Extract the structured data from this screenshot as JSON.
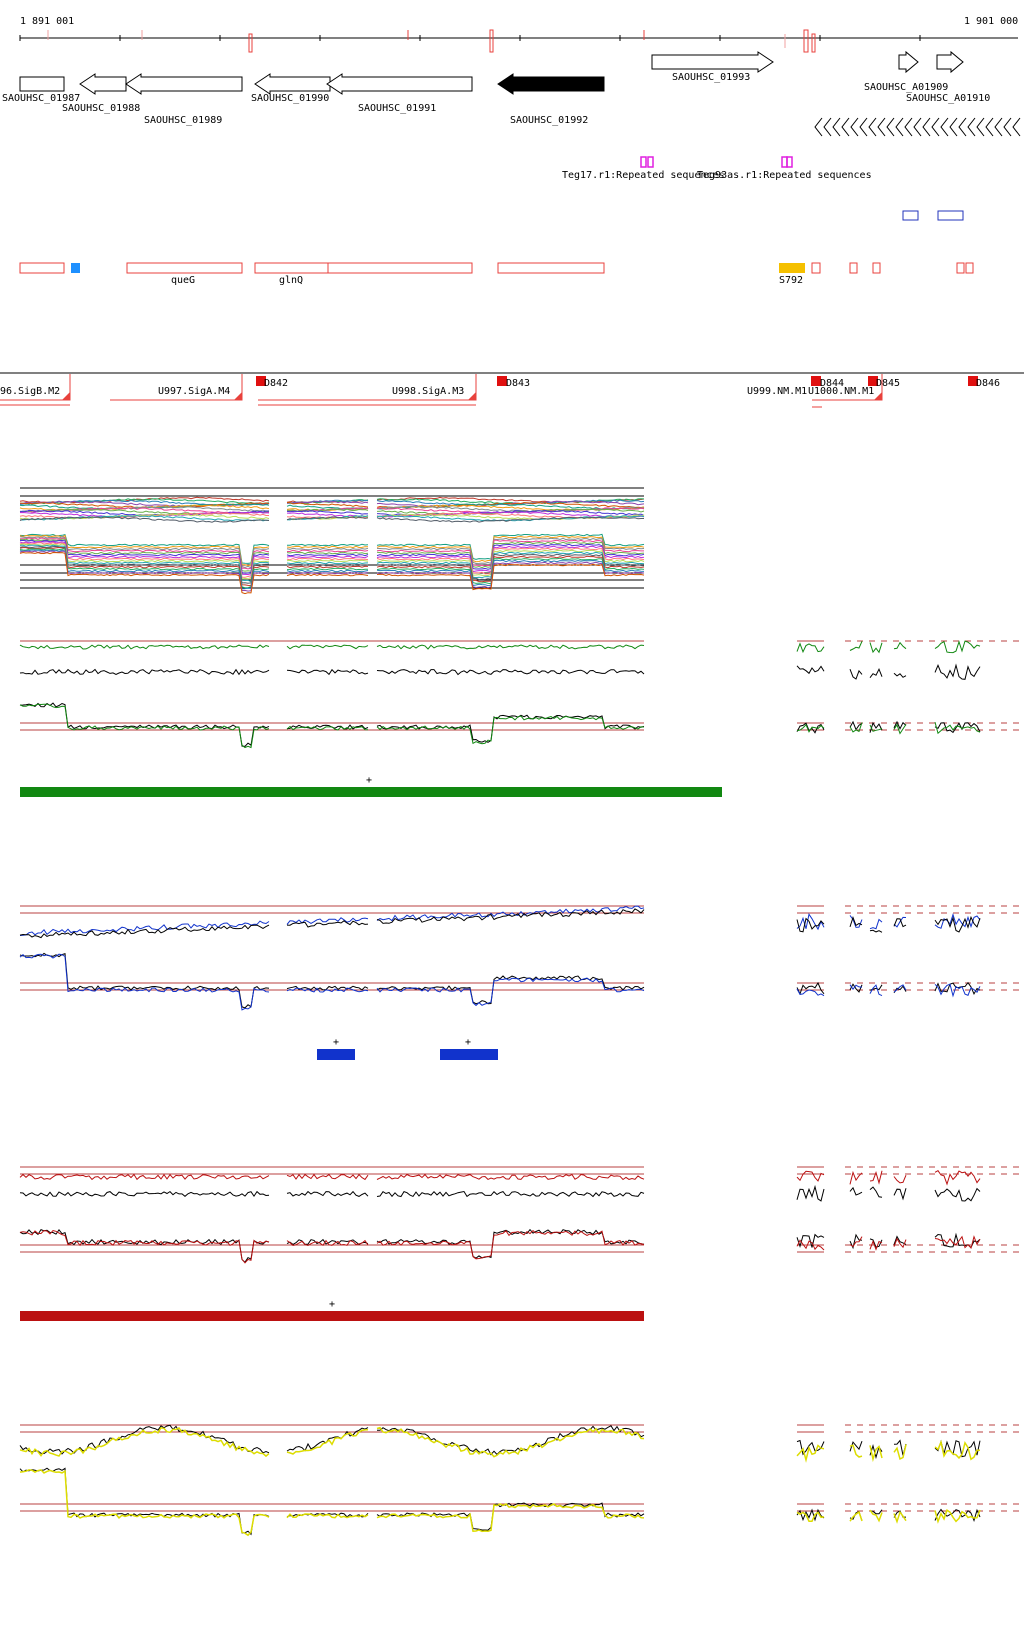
{
  "ruler": {
    "start_label": "1 891 001",
    "end_label": "1 901 000"
  },
  "genes": [
    {
      "label": "SAOUHSC_01987",
      "strand": "+",
      "filled": false
    },
    {
      "label": "SAOUHSC_01988",
      "strand": "-",
      "filled": false
    },
    {
      "label": "SAOUHSC_01989",
      "strand": "-",
      "filled": false
    },
    {
      "label": "SAOUHSC_01990",
      "strand": "-",
      "filled": false
    },
    {
      "label": "SAOUHSC_01991",
      "strand": "-",
      "filled": false
    },
    {
      "label": "SAOUHSC_01992",
      "strand": "-",
      "filled": true
    },
    {
      "label": "SAOUHSC_01993",
      "strand": "+",
      "filled": false
    },
    {
      "label": "SAOUHSC_A01909",
      "strand": "+",
      "filled": false
    },
    {
      "label": "SAOUHSC_A01910",
      "strand": "+",
      "filled": false
    }
  ],
  "repeats": [
    {
      "label": "Teg17.r1:Repeated sequences"
    },
    {
      "label": "Teg93as.r1:Repeated sequences"
    }
  ],
  "features": [
    {
      "label": "queG"
    },
    {
      "label": "glnQ"
    },
    {
      "label": "S792"
    }
  ],
  "transcripts": {
    "left_labels": [
      "96.SigB.M2",
      "U997.SigA.M4",
      "U998.SigA.M3",
      "U999.NM.M1",
      "U1000.NM.M1"
    ],
    "box_labels": [
      "D842",
      "D843",
      "D844",
      "D845",
      "D846"
    ]
  },
  "panels": [
    {
      "id": "multi",
      "marker": "+"
    },
    {
      "id": "green",
      "marker": "+"
    },
    {
      "id": "blue",
      "marker": "+"
    },
    {
      "id": "red",
      "marker": "+"
    },
    {
      "id": "yellow",
      "marker": ""
    }
  ],
  "colors": {
    "gene_outline": "#000000",
    "feature_red": "#e8413c",
    "repeat_magenta": "#e020e0",
    "blue_box": "#2233bb",
    "s792_yellow": "#f5c000",
    "cyan_marker": "#1e90ff",
    "green": "#118811",
    "blue": "#1133cc",
    "red": "#bb1111",
    "yellow": "#dddd00",
    "threshold": "#b84040"
  }
}
